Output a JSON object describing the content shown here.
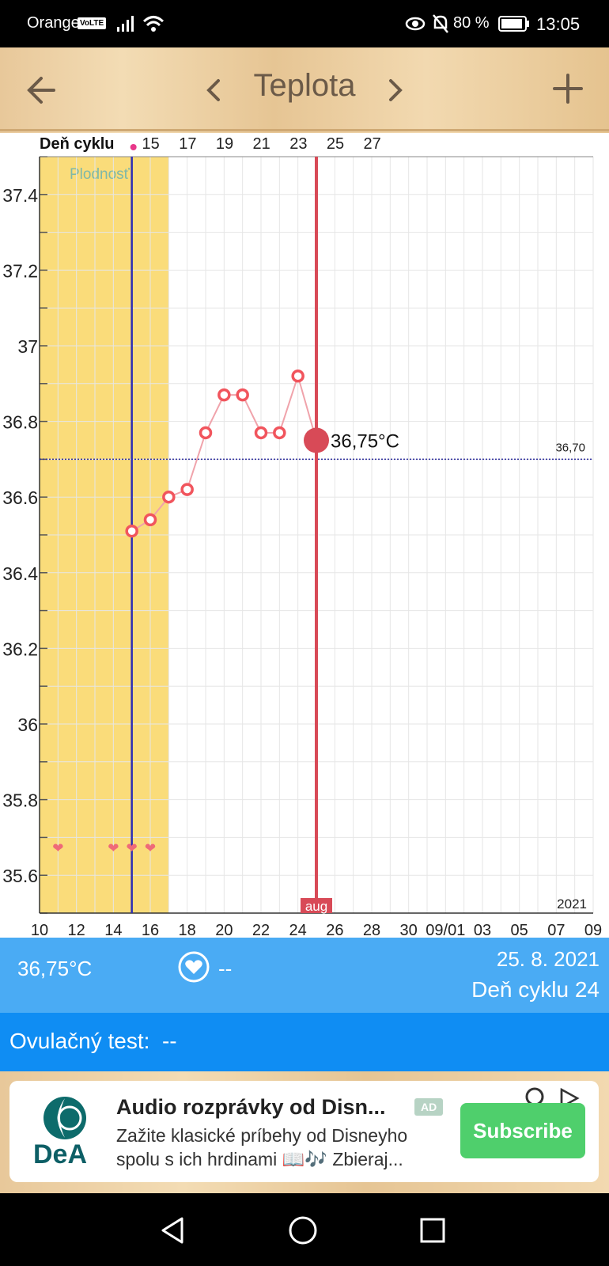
{
  "status_bar": {
    "carrier": "Orange",
    "volte": "VoLTE",
    "battery": "80 %",
    "time": "13:05"
  },
  "header": {
    "title": "Teplota",
    "back_icon": "arrow-left-icon",
    "prev_icon": "chevron-left-icon",
    "next_icon": "chevron-right-icon",
    "add_icon": "plus-icon"
  },
  "chart_data": {
    "type": "line",
    "title": "",
    "top_axis_label": "Deň cyklu",
    "top_ticks": [
      "15",
      "17",
      "19",
      "21",
      "23",
      "25",
      "27"
    ],
    "x_ticks": [
      "10",
      "12",
      "14",
      "16",
      "18",
      "20",
      "22",
      "24",
      "26",
      "28",
      "30",
      "09/01",
      "03",
      "05",
      "07",
      "09"
    ],
    "y_ticks": [
      "37.4",
      "37.2",
      "37",
      "36.8",
      "36.6",
      "36.4",
      "36.2",
      "36",
      "35.8",
      "35.6"
    ],
    "ylim": [
      35.5,
      37.5
    ],
    "x_range": [
      "2021-08-10",
      "2021-09-09"
    ],
    "series": [
      {
        "x": [
          "2021-08-15",
          "2021-08-16",
          "2021-08-17",
          "2021-08-18",
          "2021-08-19",
          "2021-08-20",
          "2021-08-21",
          "2021-08-22",
          "2021-08-23",
          "2021-08-24",
          "2021-08-25"
        ],
        "values": [
          36.51,
          36.54,
          36.6,
          36.62,
          36.77,
          36.87,
          36.87,
          36.77,
          36.77,
          36.92,
          36.75
        ]
      }
    ],
    "fertile_window": {
      "label": "Plodnosť",
      "start": "2021-08-10",
      "end": "2021-08-17"
    },
    "ovulation_date": "2021-08-15",
    "intercourse_dates": [
      "2021-08-11",
      "2021-08-14",
      "2021-08-15",
      "2021-08-16"
    ],
    "coverline": {
      "value": 36.7,
      "label": "36,70"
    },
    "selected": {
      "date": "2021-08-25",
      "label": "36,75°C",
      "month_label": "aug"
    },
    "year_label": "2021",
    "colors": {
      "fertile": "#fadc7a",
      "line": "#f0a3ab",
      "point": "#f1555d",
      "selected": "#d84a57",
      "ovulation_line": "#2d2db5",
      "coverline": "#2a2a9c"
    }
  },
  "info": {
    "temperature": "36,75°C",
    "heart_value": "--",
    "date": "25. 8. 2021",
    "cycle_day": "Deň cyklu 24",
    "ovulation_test": "Ovulačný test:  --"
  },
  "ad": {
    "brand": "DeA",
    "title": "Audio rozprávky od Disn...",
    "badge": "AD",
    "line1": "Zažite klasické príbehy od Disneyho",
    "line2": "spolu s ich hrdinami 📖🎶 Zbieraj...",
    "button": "Subscribe"
  },
  "navbar": {
    "back_icon": "triangle-back-icon",
    "home_icon": "circle-home-icon",
    "recents_icon": "square-recents-icon"
  }
}
